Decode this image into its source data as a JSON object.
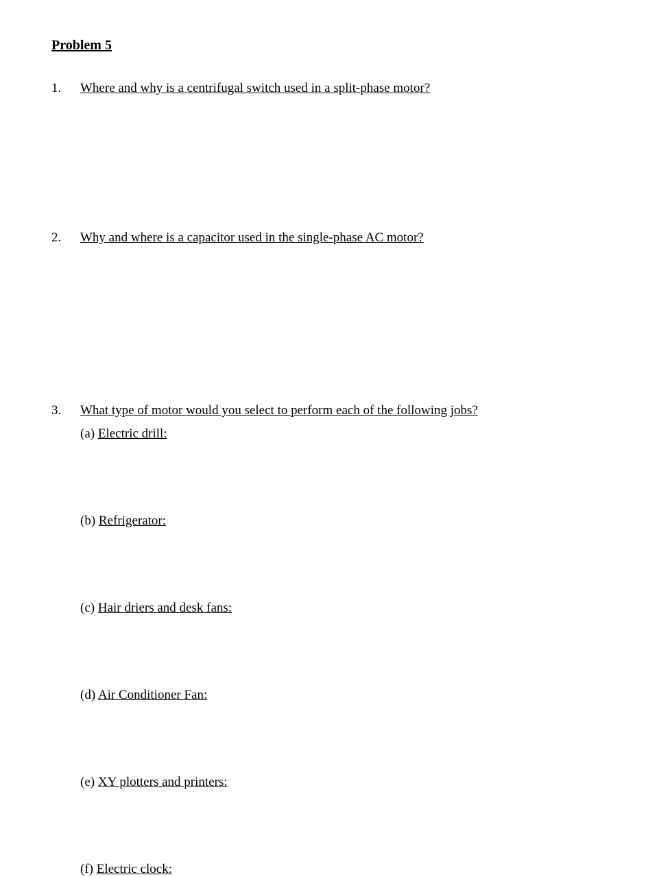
{
  "title": "Problem 5",
  "questions": {
    "q1": {
      "number": "1.",
      "text": "Where and why is a centrifugal switch used in a split-phase motor?"
    },
    "q2": {
      "number": "2.",
      "text": "Why and where is a capacitor used in the single-phase AC motor?"
    },
    "q3": {
      "number": "3.",
      "text": "What type of motor would you select to perform each of the following jobs?",
      "subs": {
        "a": {
          "label": "(a) ",
          "text": "Electric drill:"
        },
        "b": {
          "label": "(b) ",
          "text": "Refrigerator:"
        },
        "c": {
          "label": "(c) ",
          "text": "Hair driers and desk fans:"
        },
        "d": {
          "label": "(d) ",
          "text": "Air Conditioner Fan:"
        },
        "e": {
          "label": "(e) ",
          "text": "XY plotters and printers:"
        },
        "f": {
          "label": "(f)  ",
          "text": "Electric clock:"
        }
      }
    }
  },
  "colors": {
    "background": "#ffffff",
    "text": "#000000"
  },
  "fonts": {
    "family": "Times New Roman",
    "title_size": 20,
    "body_size": 19
  }
}
